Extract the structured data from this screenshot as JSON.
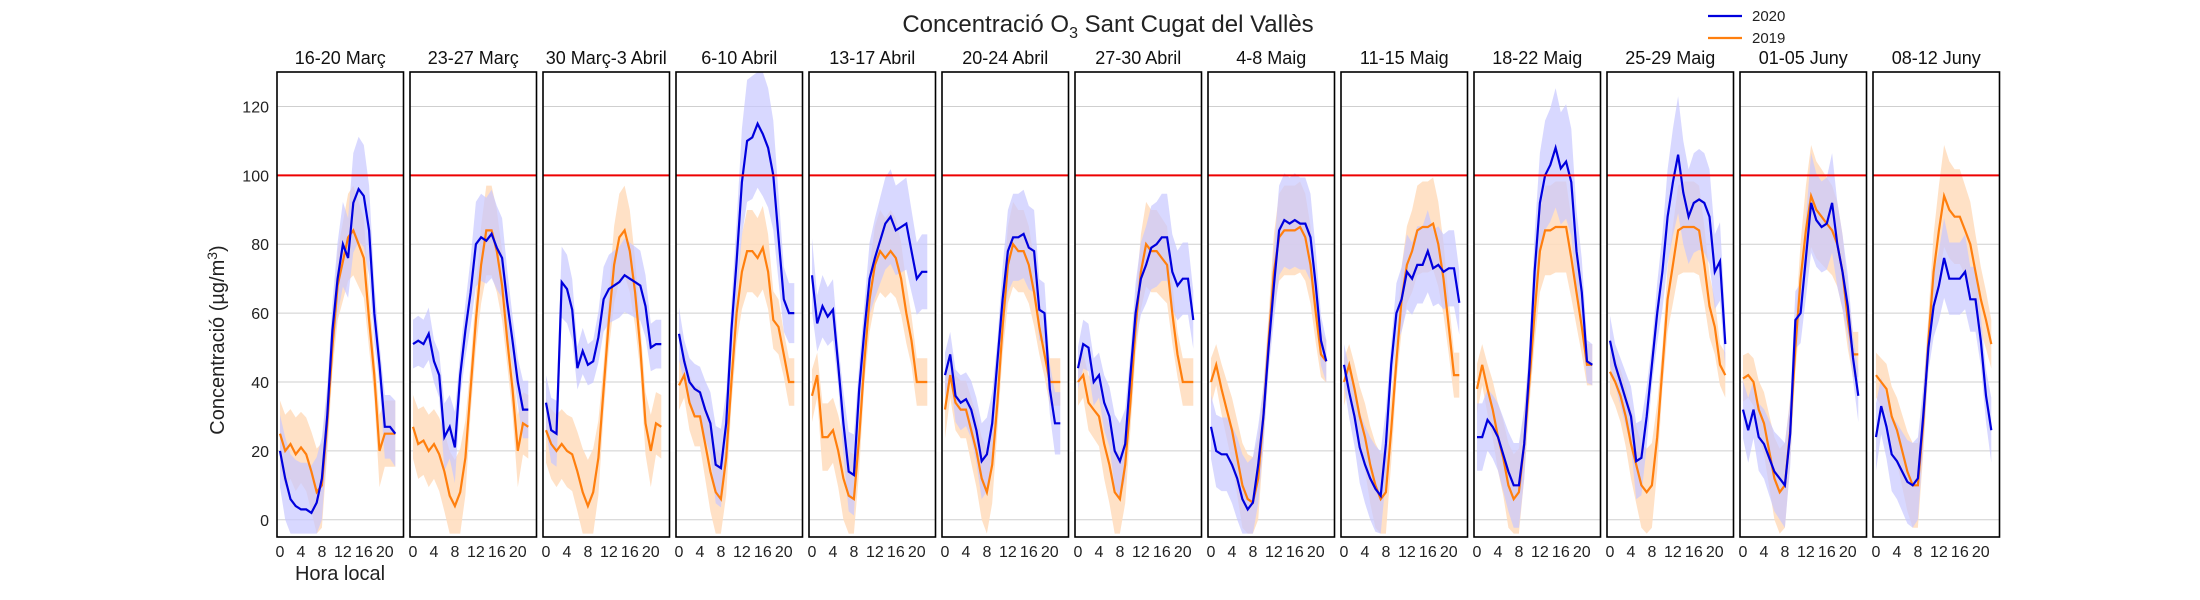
{
  "chart_data": {
    "type": "line",
    "title_main": "Concentració O",
    "title_sub": "3",
    "title_rest": " Sant Cugat del Vallès",
    "ylabel_prefix": "Concentració (µg/m",
    "ylabel_sup": "3",
    "ylabel_suffix": ")",
    "xlabel": "Hora local",
    "ylim": [
      -5,
      130
    ],
    "yticks": [
      "0",
      "20",
      "40",
      "60",
      "80",
      "100",
      "120"
    ],
    "xticks": [
      "0",
      "4",
      "8",
      "12",
      "16",
      "20"
    ],
    "threshold": 100,
    "grid": true,
    "legend_position": "top-right",
    "series_meta": [
      {
        "name": "2020",
        "color": "#0000dd",
        "band": "#c8c8ff"
      },
      {
        "name": "2019",
        "color": "#ff7f0e",
        "band": "#ffdcbc"
      }
    ],
    "threshold_color": "#ee0000",
    "panels": [
      {
        "label": "16-20 Març",
        "s2020": [
          20,
          12,
          6,
          4,
          3,
          3,
          2,
          5,
          12,
          30,
          55,
          70,
          80,
          76,
          92,
          96,
          94,
          84,
          60,
          45,
          27,
          27,
          25
        ],
        "s2019": [
          25,
          20,
          22,
          19,
          21,
          19,
          14,
          8,
          10,
          28,
          50,
          68,
          75,
          82,
          84,
          80,
          76,
          58,
          42,
          20,
          25,
          25,
          25
        ]
      },
      {
        "label": "23-27 Març",
        "s2020": [
          51,
          52,
          51,
          54,
          46,
          42,
          24,
          27,
          21,
          42,
          55,
          66,
          80,
          82,
          81,
          83,
          79,
          76,
          63,
          52,
          40,
          32,
          32
        ],
        "s2019": [
          27,
          22,
          23,
          20,
          22,
          19,
          14,
          7,
          4,
          8,
          18,
          38,
          58,
          74,
          84,
          84,
          78,
          68,
          52,
          38,
          20,
          28,
          27
        ]
      },
      {
        "label": "30 Març-3 Abril",
        "s2020": [
          34,
          26,
          25,
          69,
          67,
          61,
          44,
          49,
          45,
          46,
          53,
          64,
          67,
          68,
          69,
          71,
          70,
          69,
          68,
          62,
          50,
          51,
          51
        ],
        "s2019": [
          26,
          22,
          20,
          22,
          20,
          19,
          14,
          8,
          4,
          8,
          18,
          38,
          58,
          74,
          82,
          84,
          78,
          66,
          50,
          28,
          20,
          28,
          27
        ]
      },
      {
        "label": "6-10 Abril",
        "s2020": [
          54,
          46,
          40,
          38,
          37,
          32,
          28,
          16,
          15,
          28,
          55,
          75,
          98,
          110,
          111,
          115,
          112,
          108,
          100,
          82,
          64,
          60,
          60
        ],
        "s2019": [
          39,
          42,
          34,
          30,
          30,
          22,
          14,
          8,
          6,
          18,
          40,
          60,
          72,
          78,
          78,
          76,
          79,
          72,
          58,
          56,
          48,
          40,
          40
        ]
      },
      {
        "label": "13-17 Abril",
        "s2020": [
          71,
          57,
          62,
          59,
          61,
          45,
          28,
          14,
          13,
          38,
          55,
          70,
          76,
          81,
          86,
          88,
          84,
          85,
          86,
          78,
          70,
          72,
          72
        ],
        "s2019": [
          36,
          42,
          24,
          24,
          26,
          20,
          12,
          7,
          6,
          24,
          46,
          64,
          74,
          78,
          76,
          78,
          76,
          70,
          60,
          52,
          40,
          40,
          40
        ]
      },
      {
        "label": "20-24 Abril",
        "s2020": [
          42,
          48,
          36,
          34,
          35,
          32,
          26,
          17,
          19,
          28,
          46,
          64,
          78,
          82,
          82,
          83,
          79,
          78,
          61,
          60,
          38,
          28,
          28
        ],
        "s2019": [
          32,
          42,
          34,
          32,
          32,
          26,
          20,
          12,
          8,
          16,
          34,
          56,
          74,
          80,
          78,
          78,
          74,
          66,
          56,
          48,
          40,
          40,
          40
        ]
      },
      {
        "label": "27-30 Abril",
        "s2020": [
          44,
          51,
          50,
          40,
          42,
          34,
          30,
          20,
          17,
          22,
          42,
          60,
          70,
          74,
          79,
          80,
          82,
          82,
          72,
          68,
          70,
          70,
          58
        ],
        "s2019": [
          40,
          42,
          34,
          32,
          30,
          22,
          16,
          8,
          6,
          16,
          34,
          56,
          72,
          80,
          78,
          78,
          76,
          74,
          60,
          48,
          40,
          40,
          40
        ]
      },
      {
        "label": "4-8 Maig",
        "s2020": [
          27,
          20,
          19,
          19,
          16,
          12,
          6,
          3,
          5,
          16,
          30,
          50,
          68,
          84,
          87,
          86,
          87,
          86,
          86,
          82,
          68,
          52,
          46
        ],
        "s2019": [
          40,
          45,
          38,
          32,
          26,
          18,
          10,
          6,
          5,
          12,
          30,
          52,
          72,
          82,
          84,
          84,
          84,
          85,
          82,
          74,
          60,
          48,
          46
        ]
      },
      {
        "label": "11-15 Maig",
        "s2020": [
          45,
          37,
          30,
          21,
          16,
          12,
          9,
          7,
          22,
          45,
          60,
          64,
          72,
          70,
          74,
          74,
          78,
          73,
          74,
          72,
          73,
          73,
          63
        ],
        "s2019": [
          40,
          45,
          38,
          30,
          24,
          16,
          10,
          6,
          8,
          26,
          46,
          64,
          74,
          78,
          84,
          85,
          85,
          86,
          80,
          70,
          56,
          42,
          42
        ]
      },
      {
        "label": "18-22 Maig",
        "s2020": [
          24,
          24,
          29,
          27,
          24,
          19,
          14,
          10,
          10,
          22,
          44,
          72,
          92,
          100,
          103,
          108,
          102,
          104,
          98,
          78,
          66,
          46,
          45
        ],
        "s2019": [
          38,
          45,
          38,
          32,
          24,
          18,
          10,
          6,
          8,
          22,
          40,
          60,
          78,
          84,
          84,
          85,
          85,
          85,
          76,
          66,
          56,
          45,
          45
        ]
      },
      {
        "label": "25-29 Maig",
        "s2020": [
          52,
          45,
          40,
          35,
          30,
          17,
          18,
          30,
          45,
          60,
          72,
          88,
          98,
          106,
          95,
          88,
          92,
          93,
          92,
          88,
          72,
          75,
          51
        ],
        "s2019": [
          43,
          40,
          36,
          30,
          22,
          16,
          10,
          8,
          10,
          24,
          44,
          64,
          74,
          84,
          85,
          85,
          85,
          84,
          74,
          62,
          56,
          45,
          42
        ]
      },
      {
        "label": "01-05 Juny",
        "s2020": [
          32,
          26,
          32,
          24,
          22,
          18,
          14,
          12,
          10,
          25,
          58,
          60,
          76,
          92,
          87,
          85,
          86,
          92,
          80,
          72,
          62,
          47,
          36
        ],
        "s2019": [
          41,
          42,
          40,
          32,
          28,
          20,
          12,
          8,
          10,
          26,
          50,
          70,
          84,
          94,
          90,
          88,
          86,
          84,
          80,
          72,
          58,
          48,
          48
        ]
      },
      {
        "label": "08-12 Juny",
        "s2020": [
          24,
          33,
          27,
          19,
          17,
          14,
          11,
          10,
          12,
          30,
          50,
          62,
          68,
          76,
          70,
          70,
          70,
          72,
          64,
          64,
          52,
          36,
          26
        ],
        "s2019": [
          42,
          40,
          38,
          30,
          26,
          20,
          14,
          10,
          10,
          28,
          52,
          72,
          84,
          94,
          90,
          88,
          88,
          84,
          80,
          72,
          64,
          58,
          51
        ]
      }
    ]
  }
}
